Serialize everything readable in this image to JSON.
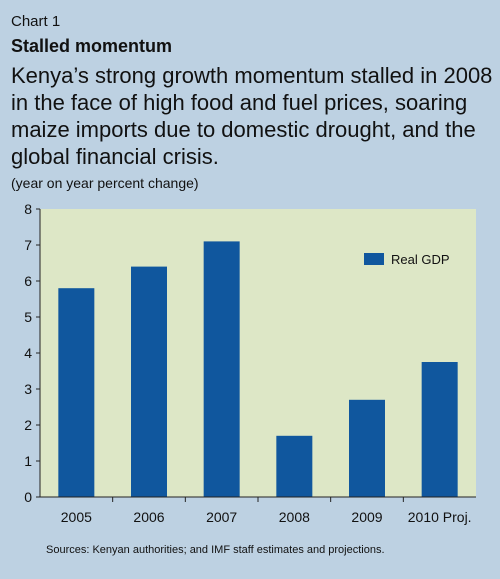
{
  "header": {
    "chart_label": "Chart 1",
    "title": "Stalled momentum",
    "headline": "Kenya’s strong growth momentum stalled in 2008 in the face of high food and fuel prices, soaring maize imports due to domestic drought, and the global financial crisis.",
    "units": "(year on year percent change)"
  },
  "footer": {
    "source": "Sources: Kenyan authorities; and IMF staff estimates and projections."
  },
  "colors": {
    "background": "#bdd1e2",
    "plot_area": "#dde7c6",
    "bar": "#10579e"
  },
  "chart_data": {
    "type": "bar",
    "categories": [
      "2005",
      "2006",
      "2007",
      "2008",
      "2009",
      "2010 Proj."
    ],
    "series": [
      {
        "name": "Real GDP",
        "values": [
          5.8,
          6.4,
          7.1,
          1.7,
          2.7,
          3.75
        ]
      }
    ],
    "xlabel": "",
    "ylabel": "",
    "ylim": [
      0,
      8
    ],
    "yticks": [
      0,
      1,
      2,
      3,
      4,
      5,
      6,
      7,
      8
    ],
    "grid": false,
    "legend": "top-right"
  }
}
